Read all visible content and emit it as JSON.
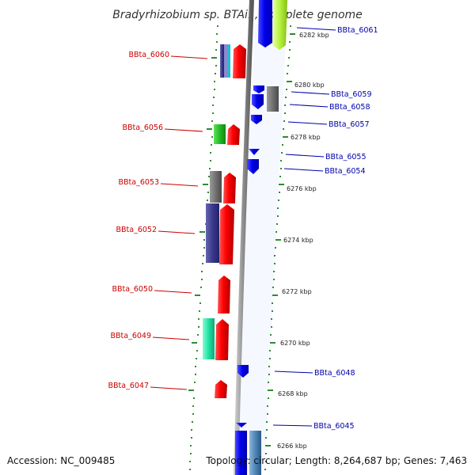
{
  "title": "Bradyrhizobium sp. BTAi1, complete genome",
  "footer": {
    "accession": "Accession: NC_009485",
    "topology": "Topology: circular; Length: 8,264,687 bp; Genes: 7,463"
  },
  "colors": {
    "backbone": "#8a8a8a",
    "tick": "#2e8b2e",
    "left_label": "#cc0000",
    "right_label": "#0000aa"
  },
  "kbp_ticks": [
    "6282 kbp",
    "6280 kbp",
    "6278 kbp",
    "6276 kbp",
    "6274 kbp",
    "6272 kbp",
    "6270 kbp",
    "6268 kbp",
    "6266 kbp"
  ],
  "left_genes": [
    "BBta_6060",
    "BBta_6056",
    "BBta_6053",
    "BBta_6052",
    "BBta_6050",
    "BBta_6049",
    "BBta_6047"
  ],
  "right_genes": [
    "BBta_6061",
    "BBta_6059",
    "BBta_6058",
    "BBta_6057",
    "BBta_6055",
    "BBta_6054",
    "BBta_6048",
    "BBta_6045"
  ]
}
